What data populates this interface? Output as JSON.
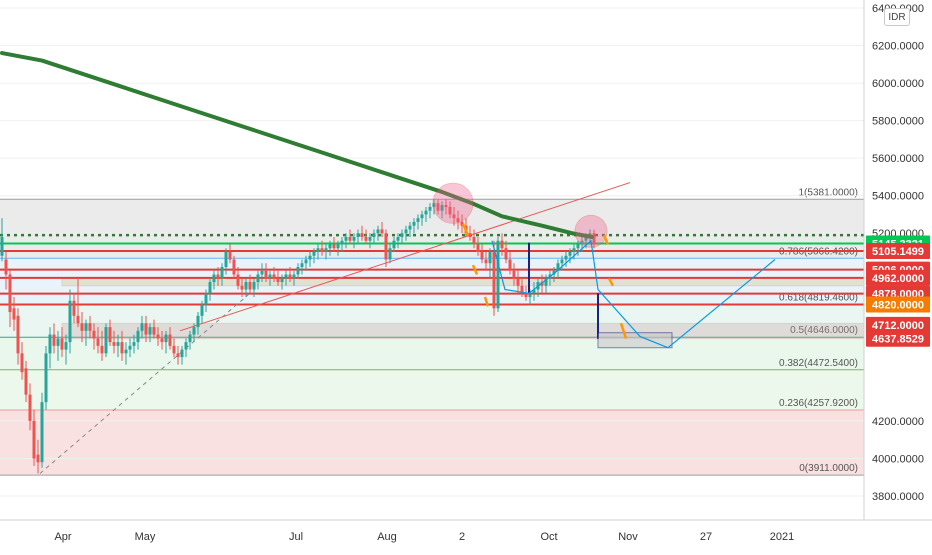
{
  "currency": "IDR",
  "chart_data": {
    "type": "candlestick",
    "y_axis": {
      "ylim": [
        3700,
        6420
      ],
      "tick_labels": [
        "6400.0000",
        "6200.0000",
        "6000.0000",
        "5800.0000",
        "5600.0000",
        "5400.0000",
        "5200.0000",
        "4200.0000",
        "4000.0000",
        "3800.0000"
      ],
      "tick_values": [
        6400,
        6200,
        6000,
        5800,
        5600,
        5400,
        5200,
        4200,
        4000,
        3800
      ]
    },
    "x_axis": {
      "tick_labels": [
        "Apr",
        "May",
        "Jul",
        "Aug",
        "2",
        "Oct",
        "Nov",
        "27",
        "2021"
      ]
    },
    "fibonacci": [
      {
        "ratio": "1",
        "value": 5381.0,
        "label": "1(5381.0000)"
      },
      {
        "ratio": "0.786",
        "value": 5066.42,
        "label": "0.786(5066.4200)"
      },
      {
        "ratio": "0.618",
        "value": 4819.46,
        "label": "0.618(4819.4600)"
      },
      {
        "ratio": "0.5",
        "value": 4646.0,
        "label": "0.5(4646.0000)"
      },
      {
        "ratio": "0.382",
        "value": 4472.54,
        "label": "0.382(4472.5400)"
      },
      {
        "ratio": "0.236",
        "value": 4257.92,
        "label": "0.236(4257.9200)"
      },
      {
        "ratio": "0",
        "value": 3911.0,
        "label": "0(3911.0000)"
      }
    ],
    "price_badges": [
      {
        "label": "5145.3321",
        "value": 5145.3321,
        "color": "#00c853"
      },
      {
        "label": "5105.1499",
        "value": 5105.1499,
        "color": "#e53935"
      },
      {
        "label": "5006.0000",
        "value": 5006.0,
        "color": "#e53935"
      },
      {
        "label": "4962.0000",
        "value": 4962.0,
        "color": "#e53935"
      },
      {
        "label": "4878.0000",
        "value": 4878.0,
        "color": "#e53935"
      },
      {
        "label": "4820.0000",
        "value": 4820.0,
        "color": "#f57c00"
      },
      {
        "label": "4712.0000",
        "value": 4712.0,
        "color": "#e53935"
      },
      {
        "label": "4637.8529",
        "value": 4637.8529,
        "color": "#e53935"
      }
    ],
    "horizontal_levels": [
      {
        "value": 5190,
        "color": "#2e7d32",
        "style": "dotted"
      },
      {
        "value": 5145.3321,
        "color": "#00c853",
        "style": "solid"
      },
      {
        "value": 5105.1499,
        "color": "#e53935",
        "style": "solid"
      },
      {
        "value": 5006.0,
        "color": "#e53935",
        "style": "solid"
      },
      {
        "value": 4962.0,
        "color": "#e53935",
        "style": "solid"
      },
      {
        "value": 4878.0,
        "color": "#e53935",
        "style": "solid"
      },
      {
        "value": 4820.0,
        "color": "#e53935",
        "style": "solid"
      }
    ],
    "moving_average": {
      "color": "#2e7d32",
      "points": [
        [
          0,
          6160
        ],
        [
          40,
          6120
        ],
        [
          80,
          6050
        ],
        [
          120,
          5980
        ],
        [
          160,
          5910
        ],
        [
          200,
          5840
        ],
        [
          240,
          5770
        ],
        [
          280,
          5700
        ],
        [
          320,
          5630
        ],
        [
          360,
          5560
        ],
        [
          400,
          5490
        ],
        [
          440,
          5420
        ],
        [
          470,
          5360
        ],
        [
          500,
          5290
        ],
        [
          540,
          5240
        ],
        [
          570,
          5200
        ],
        [
          590,
          5180
        ]
      ]
    },
    "candles": [
      [
        0,
        5080,
        5280,
        5050,
        5180
      ],
      [
        4,
        5060,
        5100,
        4900,
        4980
      ],
      [
        8,
        4980,
        5000,
        4700,
        4780
      ],
      [
        12,
        4800,
        4860,
        4680,
        4740
      ],
      [
        16,
        4760,
        4800,
        4500,
        4560
      ],
      [
        20,
        4560,
        4620,
        4420,
        4460
      ],
      [
        24,
        4480,
        4520,
        4300,
        4340
      ],
      [
        28,
        4340,
        4400,
        4150,
        4200
      ],
      [
        32,
        4200,
        4260,
        3960,
        4000
      ],
      [
        36,
        4020,
        4100,
        3920,
        3980
      ],
      [
        40,
        3980,
        4350,
        3950,
        4300
      ],
      [
        44,
        4300,
        4600,
        4260,
        4560
      ],
      [
        48,
        4560,
        4700,
        4480,
        4660
      ],
      [
        52,
        4660,
        4720,
        4560,
        4600
      ],
      [
        56,
        4600,
        4680,
        4520,
        4640
      ],
      [
        60,
        4640,
        4700,
        4540,
        4580
      ],
      [
        64,
        4580,
        4660,
        4500,
        4620
      ],
      [
        68,
        4620,
        4900,
        4560,
        4840
      ],
      [
        72,
        4840,
        4880,
        4720,
        4760
      ],
      [
        76,
        4760,
        4960,
        4700,
        4720
      ],
      [
        80,
        4720,
        4780,
        4620,
        4680
      ],
      [
        84,
        4680,
        4740,
        4600,
        4720
      ],
      [
        88,
        4720,
        4760,
        4640,
        4680
      ],
      [
        92,
        4680,
        4720,
        4580,
        4640
      ],
      [
        96,
        4640,
        4700,
        4560,
        4600
      ],
      [
        100,
        4600,
        4680,
        4520,
        4560
      ],
      [
        104,
        4560,
        4720,
        4540,
        4700
      ],
      [
        108,
        4700,
        4740,
        4600,
        4620
      ],
      [
        112,
        4620,
        4680,
        4560,
        4600
      ],
      [
        116,
        4600,
        4660,
        4540,
        4620
      ],
      [
        120,
        4620,
        4680,
        4520,
        4560
      ],
      [
        124,
        4560,
        4620,
        4500,
        4580
      ],
      [
        128,
        4580,
        4640,
        4540,
        4600
      ],
      [
        132,
        4600,
        4660,
        4560,
        4620
      ],
      [
        136,
        4620,
        4700,
        4580,
        4680
      ],
      [
        140,
        4680,
        4760,
        4640,
        4720
      ],
      [
        144,
        4720,
        4760,
        4620,
        4660
      ],
      [
        148,
        4660,
        4720,
        4620,
        4700
      ],
      [
        152,
        4700,
        4740,
        4640,
        4660
      ],
      [
        156,
        4660,
        4700,
        4600,
        4640
      ],
      [
        160,
        4640,
        4680,
        4580,
        4620
      ],
      [
        164,
        4620,
        4680,
        4560,
        4660
      ],
      [
        168,
        4660,
        4700,
        4580,
        4600
      ],
      [
        172,
        4600,
        4640,
        4540,
        4560
      ],
      [
        176,
        4560,
        4600,
        4500,
        4540
      ],
      [
        180,
        4540,
        4600,
        4500,
        4580
      ],
      [
        184,
        4580,
        4640,
        4540,
        4620
      ],
      [
        188,
        4620,
        4680,
        4580,
        4660
      ],
      [
        192,
        4660,
        4720,
        4620,
        4700
      ],
      [
        196,
        4700,
        4780,
        4660,
        4760
      ],
      [
        200,
        4760,
        4840,
        4720,
        4820
      ],
      [
        204,
        4820,
        4900,
        4780,
        4880
      ],
      [
        208,
        4880,
        4960,
        4840,
        4940
      ],
      [
        212,
        4940,
        5000,
        4900,
        4980
      ],
      [
        216,
        4980,
        5020,
        4920,
        4960
      ],
      [
        220,
        4960,
        5040,
        4920,
        5020
      ],
      [
        224,
        5020,
        5120,
        4980,
        5100
      ],
      [
        228,
        5100,
        5140,
        5040,
        5060
      ],
      [
        232,
        5060,
        5080,
        4960,
        4980
      ],
      [
        236,
        4980,
        5020,
        4900,
        4920
      ],
      [
        240,
        4920,
        4960,
        4860,
        4900
      ],
      [
        244,
        4900,
        4960,
        4860,
        4940
      ],
      [
        248,
        4940,
        4980,
        4880,
        4900
      ],
      [
        252,
        4900,
        4960,
        4860,
        4940
      ],
      [
        256,
        4940,
        5000,
        4900,
        4980
      ],
      [
        260,
        4980,
        5040,
        4940,
        5000
      ],
      [
        264,
        5000,
        5040,
        4940,
        4960
      ],
      [
        268,
        4960,
        5000,
        4920,
        4980
      ],
      [
        272,
        4980,
        5020,
        4940,
        4960
      ],
      [
        276,
        4960,
        5000,
        4920,
        4940
      ],
      [
        280,
        4940,
        4980,
        4900,
        4960
      ],
      [
        284,
        4960,
        5000,
        4920,
        4980
      ],
      [
        288,
        4980,
        5020,
        4940,
        4960
      ],
      [
        292,
        4960,
        5000,
        4920,
        4980
      ],
      [
        296,
        4980,
        5040,
        4960,
        5020
      ],
      [
        300,
        5020,
        5060,
        4980,
        5040
      ],
      [
        304,
        5040,
        5080,
        5000,
        5060
      ],
      [
        308,
        5060,
        5100,
        5020,
        5080
      ],
      [
        312,
        5080,
        5120,
        5040,
        5100
      ],
      [
        316,
        5100,
        5140,
        5060,
        5120
      ],
      [
        320,
        5120,
        5160,
        5080,
        5100
      ],
      [
        324,
        5100,
        5140,
        5060,
        5120
      ],
      [
        328,
        5120,
        5160,
        5080,
        5140
      ],
      [
        332,
        5140,
        5180,
        5100,
        5120
      ],
      [
        336,
        5120,
        5160,
        5080,
        5140
      ],
      [
        340,
        5140,
        5180,
        5100,
        5160
      ],
      [
        344,
        5160,
        5200,
        5120,
        5180
      ],
      [
        348,
        5180,
        5220,
        5140,
        5160
      ],
      [
        352,
        5160,
        5200,
        5120,
        5180
      ],
      [
        356,
        5180,
        5220,
        5140,
        5200
      ],
      [
        360,
        5200,
        5240,
        5160,
        5180
      ],
      [
        364,
        5180,
        5220,
        5140,
        5160
      ],
      [
        368,
        5160,
        5200,
        5120,
        5180
      ],
      [
        372,
        5180,
        5220,
        5140,
        5200
      ],
      [
        376,
        5200,
        5240,
        5160,
        5220
      ],
      [
        380,
        5220,
        5260,
        5180,
        5200
      ],
      [
        384,
        5200,
        5220,
        5020,
        5060
      ],
      [
        388,
        5060,
        5140,
        5040,
        5120
      ],
      [
        392,
        5120,
        5180,
        5100,
        5160
      ],
      [
        396,
        5160,
        5200,
        5120,
        5180
      ],
      [
        400,
        5180,
        5220,
        5140,
        5200
      ],
      [
        404,
        5200,
        5240,
        5160,
        5220
      ],
      [
        408,
        5220,
        5260,
        5180,
        5240
      ],
      [
        412,
        5240,
        5280,
        5200,
        5260
      ],
      [
        416,
        5260,
        5300,
        5220,
        5280
      ],
      [
        420,
        5280,
        5320,
        5240,
        5300
      ],
      [
        424,
        5300,
        5340,
        5260,
        5320
      ],
      [
        428,
        5320,
        5360,
        5280,
        5340
      ],
      [
        432,
        5340,
        5380,
        5300,
        5360
      ],
      [
        436,
        5360,
        5380,
        5300,
        5320
      ],
      [
        440,
        5320,
        5370,
        5280,
        5350
      ],
      [
        444,
        5350,
        5381,
        5300,
        5340
      ],
      [
        448,
        5340,
        5370,
        5280,
        5300
      ],
      [
        452,
        5300,
        5340,
        5240,
        5280
      ],
      [
        456,
        5280,
        5320,
        5220,
        5260
      ],
      [
        460,
        5260,
        5300,
        5200,
        5240
      ],
      [
        464,
        5240,
        5280,
        5180,
        5200
      ],
      [
        468,
        5200,
        5240,
        5160,
        5180
      ],
      [
        472,
        5180,
        5220,
        5120,
        5140
      ],
      [
        476,
        5140,
        5180,
        5080,
        5100
      ],
      [
        480,
        5100,
        5140,
        5040,
        5060
      ],
      [
        484,
        5060,
        5100,
        5000,
        5040
      ],
      [
        488,
        5040,
        5120,
        4960,
        5100
      ],
      [
        492,
        5100,
        5160,
        4760,
        4800
      ],
      [
        496,
        4800,
        5180,
        4780,
        5160
      ],
      [
        500,
        5160,
        5200,
        5080,
        5120
      ],
      [
        504,
        5120,
        5160,
        5040,
        5060
      ],
      [
        508,
        5060,
        5100,
        4980,
        5000
      ],
      [
        512,
        5000,
        5040,
        4920,
        4960
      ],
      [
        516,
        4960,
        5000,
        4880,
        4920
      ],
      [
        520,
        4920,
        4960,
        4860,
        4880
      ],
      [
        524,
        4880,
        4920,
        4840,
        4860
      ],
      [
        528,
        4860,
        4900,
        4820,
        4880
      ],
      [
        532,
        4880,
        4940,
        4840,
        4900
      ],
      [
        536,
        4900,
        4960,
        4860,
        4940
      ],
      [
        540,
        4940,
        4980,
        4880,
        4920
      ],
      [
        544,
        4920,
        4980,
        4880,
        4960
      ],
      [
        548,
        4960,
        5000,
        4920,
        4980
      ],
      [
        552,
        4980,
        5020,
        4940,
        5000
      ],
      [
        556,
        5000,
        5060,
        4960,
        5040
      ],
      [
        560,
        5040,
        5080,
        5000,
        5060
      ],
      [
        564,
        5060,
        5100,
        5020,
        5080
      ],
      [
        568,
        5080,
        5120,
        5040,
        5100
      ],
      [
        572,
        5100,
        5140,
        5060,
        5120
      ],
      [
        576,
        5120,
        5160,
        5080,
        5140
      ],
      [
        580,
        5140,
        5180,
        5100,
        5160
      ],
      [
        584,
        5160,
        5200,
        5120,
        5180
      ],
      [
        588,
        5180,
        5220,
        5140,
        5200
      ],
      [
        592,
        5200,
        5220,
        5120,
        5140
      ]
    ]
  }
}
